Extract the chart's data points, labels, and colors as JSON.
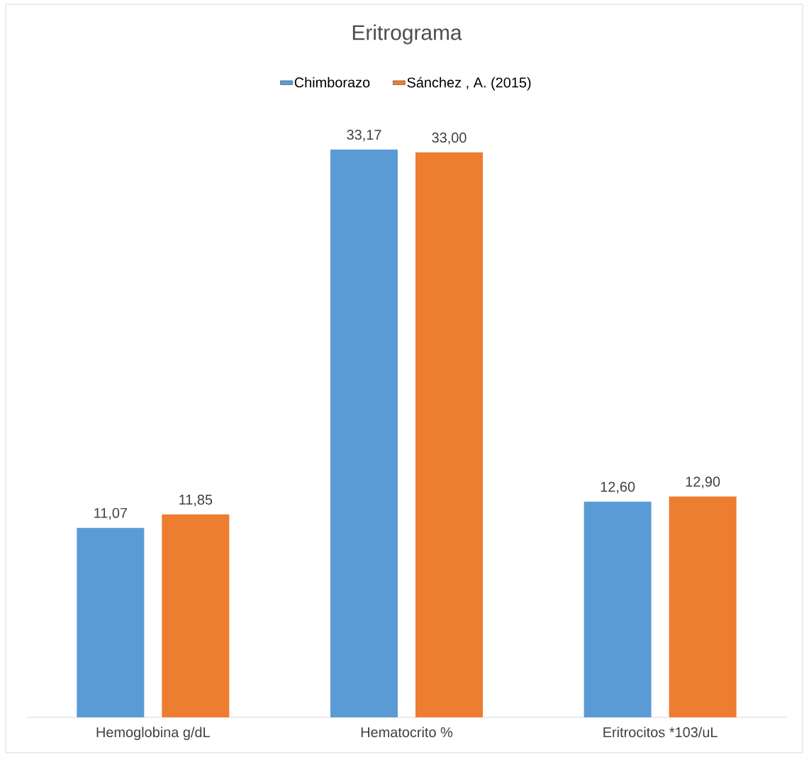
{
  "chart_data": {
    "type": "bar",
    "title": "Eritrograma",
    "categories": [
      "Hemoglobina g/dL",
      "Hematocrito %",
      "Eritrocitos *103/uL"
    ],
    "series": [
      {
        "name": "Chimborazo",
        "color": "#5b9bd5",
        "values": [
          11.07,
          33.17,
          12.6
        ],
        "value_labels": [
          "11,07",
          "33,17",
          "12,60"
        ]
      },
      {
        "name": "Sánchez , A. (2015)",
        "color": "#ed7d31",
        "values": [
          11.85,
          33.0,
          12.9
        ],
        "value_labels": [
          "11,85",
          "33,00",
          "12,90"
        ]
      }
    ],
    "tick_labels": "x",
    "legend": "top"
  }
}
